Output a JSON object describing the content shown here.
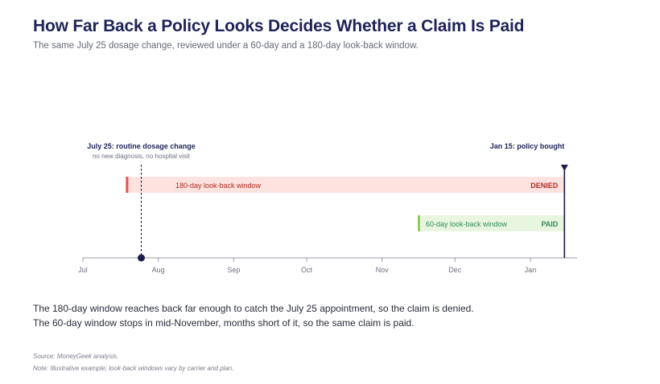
{
  "header": {
    "title": "How Far Back a Policy Looks Decides Whether a Claim Is Paid",
    "subtitle": "The same July 25 dosage change, reviewed under a 60-day and a 180-day look-back window."
  },
  "chart_data": {
    "type": "timeline",
    "title": "How Far Back a Policy Looks Decides Whether a Claim Is Paid",
    "subtitle": "The same July 25 dosage change, reviewed under a 60-day and a 180-day look-back window.",
    "x_axis": {
      "start": "2023-07-01",
      "end": "2024-01-31",
      "ticks": [
        {
          "date": "2023-07-01",
          "label": "Jul"
        },
        {
          "date": "2023-08-01",
          "label": "Aug"
        },
        {
          "date": "2023-09-01",
          "label": "Sep"
        },
        {
          "date": "2023-10-01",
          "label": "Oct"
        },
        {
          "date": "2023-11-01",
          "label": "Nov"
        },
        {
          "date": "2023-12-01",
          "label": "Dec"
        },
        {
          "date": "2024-01-01",
          "label": "Jan"
        }
      ]
    },
    "events": [
      {
        "date": "2023-07-25",
        "label": "July 25: routine dosage change",
        "sublabel": "no new diagnosis, no hospital visit",
        "color": "#1e1c4a"
      },
      {
        "date": "2024-01-15",
        "label": "Jan 15: policy bought",
        "sublabel": "",
        "color": "#1e1c4a"
      }
    ],
    "windows": [
      {
        "name": "180-day look-back window",
        "start": "2023-07-19",
        "end": "2024-01-15",
        "outcome": "DENIED",
        "fill": "#fde3e0",
        "edge": "#ef4b4b",
        "text_color": "#b22a22"
      },
      {
        "name": "60-day look-back window",
        "start": "2023-11-16",
        "end": "2024-01-15",
        "outcome": "PAID",
        "fill": "#e9f6df",
        "edge": "#8fd14a",
        "text_color": "#2e8b57"
      }
    ]
  },
  "summary": {
    "line1": "The 180-day window reaches back far enough to catch the July 25 appointment, so the claim is denied.",
    "line2": "The 60-day window stops in mid-November, months short of it, so the same claim is paid."
  },
  "notes": {
    "source": "Source: MoneyGeek analysis.",
    "note": "Note: Illustrative example; look-back windows vary by carrier and plan."
  }
}
